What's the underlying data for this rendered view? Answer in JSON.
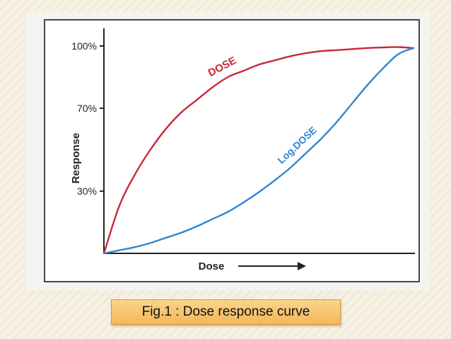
{
  "colors": {
    "dose_curve": "#c8283a",
    "log_dose_curve": "#2f86d0",
    "axis": "#222222"
  },
  "caption": "Fig.1 : Dose response curve",
  "chart_data": {
    "type": "line",
    "xlabel": "Dose",
    "ylabel": "Response",
    "ylim": [
      0,
      100
    ],
    "y_ticks": [
      {
        "value": 100,
        "label": "100%"
      },
      {
        "value": 70,
        "label": "70%"
      },
      {
        "value": 30,
        "label": "30%"
      }
    ],
    "grid": false,
    "x_tick_labels": false,
    "series": [
      {
        "name": "DOSE",
        "x": [
          0,
          0.05,
          0.1,
          0.15,
          0.2,
          0.25,
          0.3,
          0.35,
          0.4,
          0.45,
          0.5,
          0.55,
          0.6,
          0.65,
          0.7,
          0.75,
          0.8,
          0.85,
          0.9,
          0.95,
          1.0
        ],
        "y": [
          0,
          23,
          38,
          50,
          60,
          68,
          74,
          80,
          85,
          88,
          91,
          93,
          95,
          96.5,
          97.5,
          98,
          98.5,
          99,
          99.3,
          99.5,
          99
        ]
      },
      {
        "name": "Log.DOSE",
        "x": [
          0,
          0.05,
          0.1,
          0.15,
          0.2,
          0.25,
          0.3,
          0.35,
          0.4,
          0.45,
          0.5,
          0.55,
          0.6,
          0.65,
          0.7,
          0.75,
          0.8,
          0.85,
          0.9,
          0.95,
          1.0
        ],
        "y": [
          0,
          1.5,
          3,
          5,
          7.5,
          10,
          13,
          16.5,
          20,
          24.5,
          29.5,
          35,
          41,
          48,
          55,
          63,
          72,
          81,
          89,
          96,
          99
        ]
      }
    ]
  }
}
